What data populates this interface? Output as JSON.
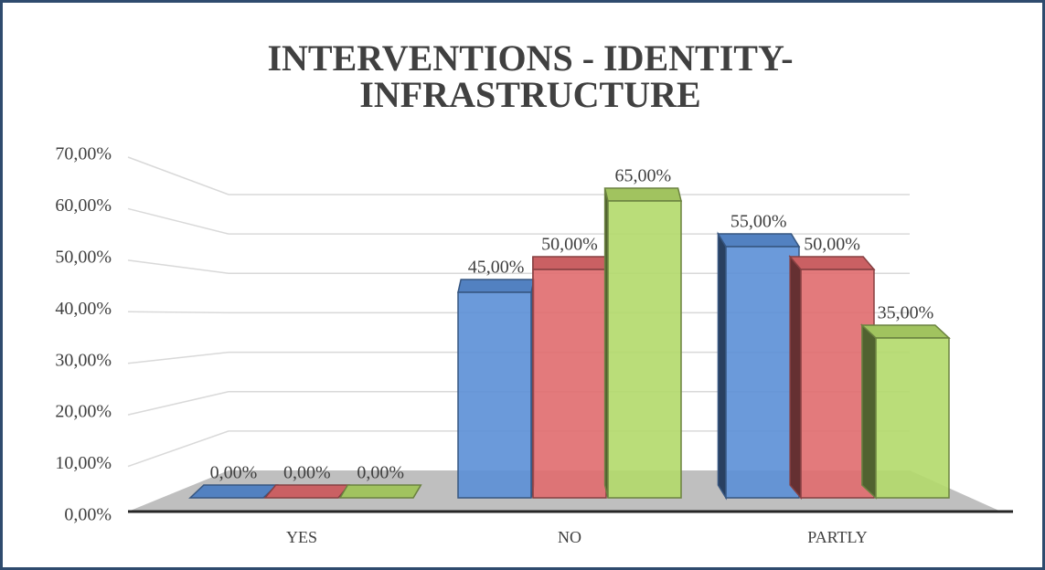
{
  "chart_data": {
    "type": "bar3d",
    "title": [
      "INTERVENTIONS - IDENTITY-",
      "INFRASTRUCTURE"
    ],
    "categories": [
      "YES",
      "NO",
      "PARTLY"
    ],
    "series": [
      {
        "color": "#5b8fd6",
        "values": [
          0,
          45,
          55
        ],
        "value_labels": [
          "0,00%",
          "45,00%",
          "55,00%"
        ]
      },
      {
        "color": "#e06b6e",
        "values": [
          0,
          50,
          50
        ],
        "value_labels": [
          "0,00%",
          "50,00%",
          "50,00%"
        ]
      },
      {
        "color": "#b3d96a",
        "values": [
          0,
          65,
          35
        ],
        "value_labels": [
          "0,00%",
          "65,00%",
          "35,00%"
        ]
      }
    ],
    "ylim": [
      0,
      70
    ],
    "yticks": [
      {
        "value": 0,
        "label": "0,00%"
      },
      {
        "value": 10,
        "label": "10,00%"
      },
      {
        "value": 20,
        "label": "20,00%"
      },
      {
        "value": 30,
        "label": "30,00%"
      },
      {
        "value": 40,
        "label": "40,00%"
      },
      {
        "value": 50,
        "label": "50,00%"
      },
      {
        "value": 60,
        "label": "60,00%"
      },
      {
        "value": 70,
        "label": "70,00%"
      }
    ],
    "grid": true
  }
}
